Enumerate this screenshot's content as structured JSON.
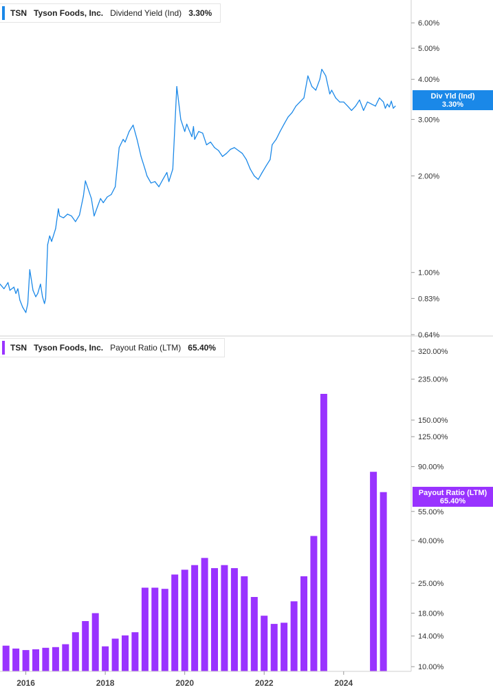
{
  "chart_data": [
    {
      "type": "line",
      "ticker": "TSN",
      "company": "Tyson Foods, Inc.",
      "metric": "Dividend Yield (Ind)",
      "current_value": "3.30%",
      "tag_label": "Div Yld (Ind)",
      "color": "#1a88e8",
      "scale": "log",
      "ylim": [
        0.64,
        7.0
      ],
      "xlim": [
        2015.35,
        2025.7
      ],
      "ytick_values": [
        0.64,
        0.83,
        1.0,
        2.0,
        3.0,
        4.0,
        5.0,
        6.0
      ],
      "yticks": [
        "0.64%",
        "0.83%",
        "1.00%",
        "2.00%",
        "3.00%",
        "4.00%",
        "5.00%",
        "6.00%"
      ],
      "x": [
        2015.35,
        2015.45,
        2015.55,
        2015.6,
        2015.7,
        2015.75,
        2015.8,
        2015.85,
        2015.92,
        2016.0,
        2016.05,
        2016.1,
        2016.18,
        2016.25,
        2016.3,
        2016.37,
        2016.42,
        2016.47,
        2016.5,
        2016.55,
        2016.6,
        2016.65,
        2016.75,
        2016.82,
        2016.85,
        2016.95,
        2017.05,
        2017.15,
        2017.25,
        2017.35,
        2017.45,
        2017.5,
        2017.55,
        2017.65,
        2017.72,
        2017.8,
        2017.88,
        2017.95,
        2018.05,
        2018.15,
        2018.25,
        2018.35,
        2018.45,
        2018.5,
        2018.6,
        2018.7,
        2018.8,
        2018.9,
        2019.0,
        2019.05,
        2019.15,
        2019.25,
        2019.35,
        2019.45,
        2019.55,
        2019.6,
        2019.7,
        2019.8,
        2019.9,
        2020.0,
        2020.05,
        2020.1,
        2020.18,
        2020.22,
        2020.25,
        2020.35,
        2020.45,
        2020.55,
        2020.65,
        2020.75,
        2020.85,
        2020.95,
        2021.05,
        2021.15,
        2021.25,
        2021.35,
        2021.45,
        2021.55,
        2021.65,
        2021.75,
        2021.85,
        2021.95,
        2022.05,
        2022.15,
        2022.2,
        2022.3,
        2022.4,
        2022.5,
        2022.6,
        2022.7,
        2022.8,
        2022.9,
        2023.0,
        2023.1,
        2023.2,
        2023.3,
        2023.4,
        2023.45,
        2023.55,
        2023.65,
        2023.7,
        2023.8,
        2023.9,
        2024.0,
        2024.1,
        2024.2,
        2024.3,
        2024.4,
        2024.5,
        2024.6,
        2024.7,
        2024.8,
        2024.9,
        2025.0,
        2025.05,
        2025.1,
        2025.15,
        2025.2,
        2025.25,
        2025.3
      ],
      "values": [
        0.92,
        0.89,
        0.93,
        0.88,
        0.9,
        0.86,
        0.89,
        0.82,
        0.78,
        0.75,
        0.8,
        1.02,
        0.88,
        0.84,
        0.86,
        0.92,
        0.84,
        0.8,
        0.83,
        1.22,
        1.3,
        1.25,
        1.37,
        1.58,
        1.5,
        1.48,
        1.52,
        1.5,
        1.44,
        1.51,
        1.73,
        1.93,
        1.85,
        1.7,
        1.5,
        1.6,
        1.7,
        1.65,
        1.72,
        1.75,
        1.85,
        2.45,
        2.6,
        2.55,
        2.75,
        2.88,
        2.6,
        2.3,
        2.1,
        2.0,
        1.9,
        1.92,
        1.85,
        1.95,
        2.05,
        1.92,
        2.1,
        3.8,
        3.0,
        2.75,
        2.9,
        2.8,
        2.65,
        2.85,
        2.6,
        2.75,
        2.72,
        2.5,
        2.55,
        2.45,
        2.4,
        2.3,
        2.35,
        2.42,
        2.45,
        2.4,
        2.35,
        2.25,
        2.1,
        2.0,
        1.95,
        2.05,
        2.15,
        2.25,
        2.5,
        2.6,
        2.75,
        2.9,
        3.05,
        3.15,
        3.3,
        3.4,
        3.5,
        4.1,
        3.8,
        3.7,
        4.0,
        4.3,
        4.1,
        3.6,
        3.7,
        3.5,
        3.4,
        3.4,
        3.3,
        3.2,
        3.3,
        3.45,
        3.2,
        3.4,
        3.35,
        3.3,
        3.5,
        3.4,
        3.25,
        3.35,
        3.28,
        3.42,
        3.25,
        3.3
      ]
    },
    {
      "type": "bar",
      "ticker": "TSN",
      "company": "Tyson Foods, Inc.",
      "metric": "Payout Ratio (LTM)",
      "current_value": "65.40%",
      "tag_label": "Payout Ratio (LTM)",
      "color": "#9933ff",
      "scale": "log",
      "ylim": [
        9.5,
        350
      ],
      "xlim": [
        2015.35,
        2025.7
      ],
      "ytick_values": [
        10,
        14,
        18,
        25,
        40,
        55,
        90,
        125,
        150,
        235,
        320
      ],
      "yticks": [
        "10.00%",
        "14.00%",
        "18.00%",
        "25.00%",
        "40.00%",
        "55.00%",
        "90.00%",
        "125.00%",
        "150.00%",
        "235.00%",
        "320.00%"
      ],
      "xtick_values": [
        2016,
        2018,
        2020,
        2022,
        2024
      ],
      "xticks": [
        "2016",
        "2018",
        "2020",
        "2022",
        "2024"
      ],
      "x": [
        2015.5,
        2015.75,
        2016.0,
        2016.25,
        2016.5,
        2016.75,
        2017.0,
        2017.25,
        2017.5,
        2017.75,
        2018.0,
        2018.25,
        2018.5,
        2018.75,
        2019.0,
        2019.25,
        2019.5,
        2019.75,
        2020.0,
        2020.25,
        2020.5,
        2020.75,
        2021.0,
        2021.25,
        2021.5,
        2021.75,
        2022.0,
        2022.25,
        2022.5,
        2022.75,
        2023.0,
        2023.25,
        2023.5,
        2024.75,
        2025.0
      ],
      "values": [
        12.6,
        12.2,
        12.0,
        12.1,
        12.3,
        12.4,
        12.8,
        14.6,
        16.5,
        18.0,
        12.5,
        13.6,
        14.1,
        14.6,
        23.8,
        23.8,
        23.5,
        27.5,
        29.0,
        30.5,
        33.0,
        29.5,
        30.5,
        29.5,
        27.0,
        21.5,
        17.5,
        16.0,
        16.2,
        20.5,
        27.0,
        42.0,
        200.0,
        85.0,
        68.0
      ]
    }
  ]
}
